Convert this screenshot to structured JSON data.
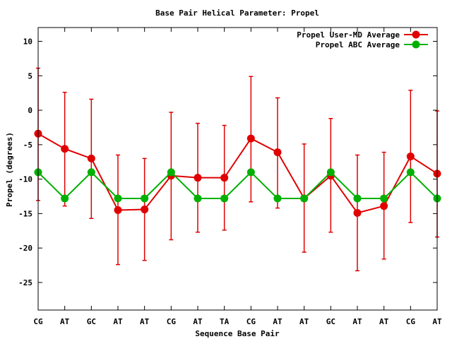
{
  "chart_data": {
    "type": "line",
    "title": "Base Pair Helical Parameter: Propel",
    "xlabel": "Sequence Base Pair",
    "ylabel": "Propel (degrees)",
    "categories": [
      "CG",
      "AT",
      "GC",
      "AT",
      "AT",
      "CG",
      "AT",
      "TA",
      "CG",
      "AT",
      "AT",
      "GC",
      "AT",
      "AT",
      "CG",
      "AT"
    ],
    "ylim": [
      -29,
      12
    ],
    "yticks": [
      10,
      5,
      0,
      -5,
      -10,
      -15,
      -20,
      -25
    ],
    "legend_position": "top-right",
    "series": [
      {
        "name": "Propel User-MD Average",
        "color": "#e00000",
        "values": [
          -3.4,
          -5.6,
          -7.0,
          -14.5,
          -14.4,
          -9.5,
          -9.8,
          -9.8,
          -4.1,
          -6.1,
          -12.8,
          -9.5,
          -14.9,
          -13.9,
          -6.7,
          -9.2
        ],
        "error_low": [
          -13.1,
          -13.9,
          -15.7,
          -22.4,
          -21.8,
          -18.8,
          -17.7,
          -17.4,
          -13.3,
          -14.2,
          -20.6,
          -17.7,
          -23.3,
          -21.6,
          -16.3,
          -18.4
        ],
        "error_high": [
          6.1,
          2.6,
          1.6,
          -6.5,
          -7.0,
          -0.3,
          -1.9,
          -2.2,
          4.9,
          1.8,
          -4.9,
          -1.2,
          -6.5,
          -6.1,
          2.9,
          -0.1
        ]
      },
      {
        "name": "Propel ABC Average",
        "color": "#00b000",
        "values": [
          -9.0,
          -12.8,
          -9.0,
          -12.8,
          -12.8,
          -9.0,
          -12.8,
          -12.8,
          -9.0,
          -12.8,
          -12.8,
          -9.0,
          -12.8,
          -12.8,
          -9.0,
          -12.8
        ]
      }
    ]
  }
}
